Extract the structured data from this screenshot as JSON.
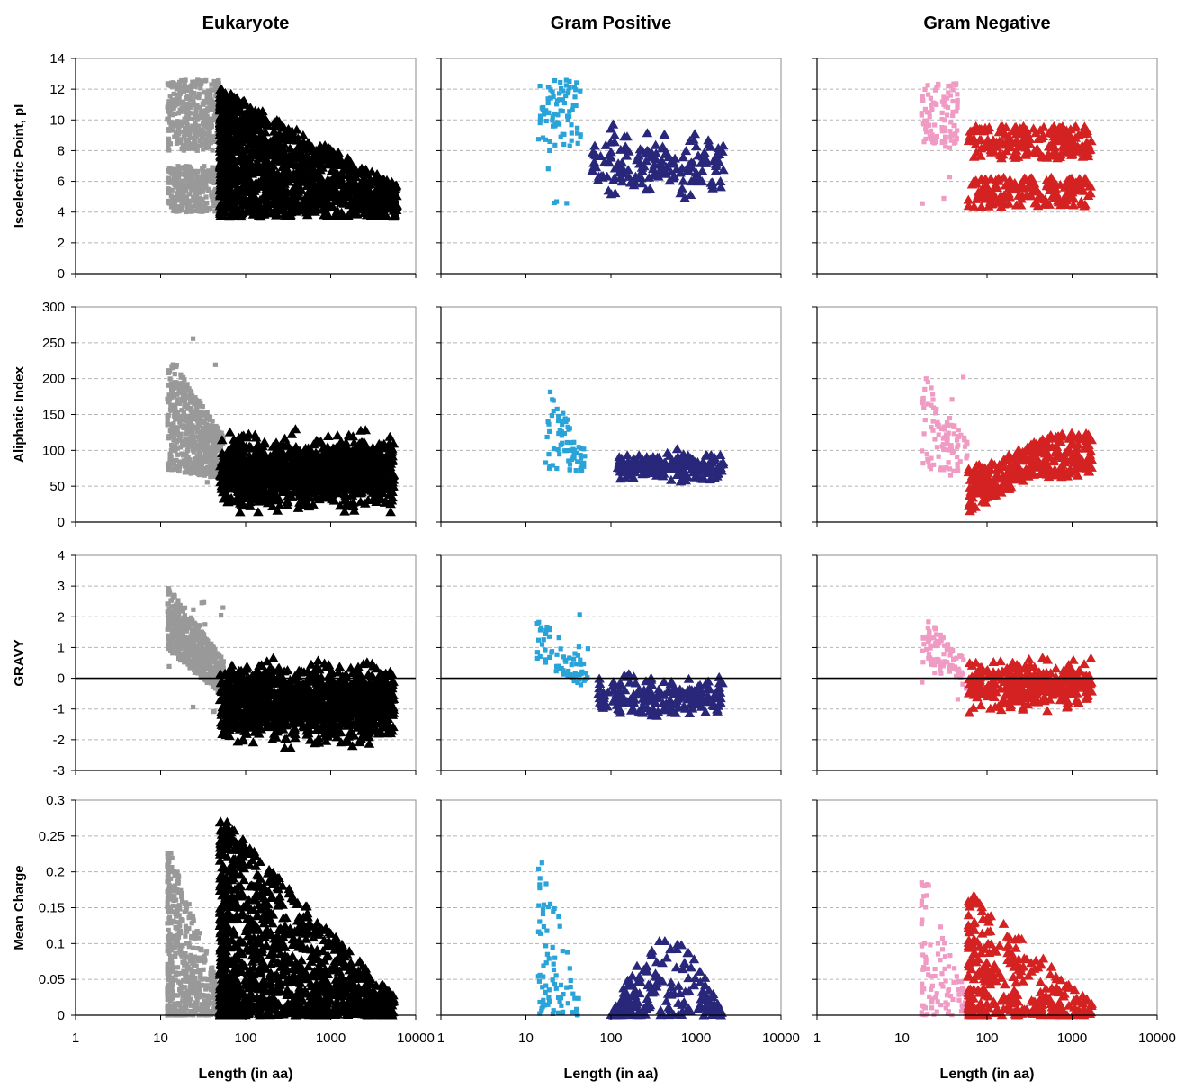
{
  "figure": {
    "columns": [
      "Eukaryote",
      "Gram Positive",
      "Gram Negative"
    ],
    "xlabel": "Length (in aa)"
  },
  "colors": {
    "eukaryote": {
      "short": "#999999",
      "long": "#000000"
    },
    "gram_positive": {
      "short": "#29a3d8",
      "long": "#29277a"
    },
    "gram_negative": {
      "short": "#ef9bc4",
      "long": "#d42222"
    },
    "grid": "#b5b5b5"
  },
  "chart_data": {
    "type": "scatter",
    "xscale": "log",
    "xlim": [
      1,
      10000
    ],
    "xticks": [
      "1",
      "10",
      "100",
      "1000",
      "10000"
    ],
    "columns": [
      "Eukaryote",
      "Gram Positive",
      "Gram Negative"
    ],
    "grid": "horizontal dashed",
    "rows": [
      {
        "ylabel": "Isoelectric Point, pI",
        "ylim": [
          0,
          14
        ],
        "yticks": [
          "0",
          "2",
          "4",
          "6",
          "8",
          "10",
          "12",
          "14"
        ],
        "zero_line": false,
        "clusters": [
          [
            {
              "group": "short",
              "marker": "square",
              "n": 700,
              "x": [
                12,
                50
              ],
              "y": [
                3.5,
                12.7
              ],
              "shape": "bimodal",
              "modes": [
                [
                  4,
                  7
                ],
                [
                  8,
                  12.6
                ]
              ]
            },
            {
              "group": "long",
              "marker": "triangle",
              "n": 1300,
              "x": [
                50,
                6000
              ],
              "y": [
                3.7,
                12.1
              ],
              "shape": "cone"
            }
          ],
          [
            {
              "group": "short",
              "marker": "square",
              "n": 85,
              "x": [
                14,
                45
              ],
              "y": [
                3.9,
                12.6
              ],
              "shape": "upper"
            },
            {
              "group": "long",
              "marker": "triangle",
              "n": 170,
              "x": [
                60,
                2100
              ],
              "y": [
                4.1,
                10.1
              ],
              "shape": "band"
            }
          ],
          [
            {
              "group": "short",
              "marker": "square",
              "n": 100,
              "x": [
                17,
                45
              ],
              "y": [
                4.5,
                12.4
              ],
              "shape": "upper"
            },
            {
              "group": "long",
              "marker": "triangle",
              "n": 380,
              "x": [
                60,
                1700
              ],
              "y": [
                2.8,
                9.6
              ],
              "shape": "bimodal",
              "modes": [
                [
                  4.3,
                  6.3
                ],
                [
                  7.5,
                  9.6
                ]
              ]
            }
          ]
        ]
      },
      {
        "ylabel": "Aliphatic Index",
        "ylim": [
          0,
          300
        ],
        "yticks": [
          "0",
          "50",
          "100",
          "150",
          "200",
          "250",
          "300"
        ],
        "zero_line": false,
        "clusters": [
          [
            {
              "group": "short",
              "marker": "square",
              "n": 600,
              "x": [
                12,
                55
              ],
              "y": [
                42,
                270
              ],
              "shape": "slope",
              "hi": [
                235,
                120
              ],
              "lo": [
                72,
                60
              ]
            },
            {
              "group": "long",
              "marker": "triangle",
              "n": 1300,
              "x": [
                50,
                5500
              ],
              "y": [
                5,
                135
              ],
              "shape": "band"
            }
          ],
          [
            {
              "group": "short",
              "marker": "square",
              "n": 70,
              "x": [
                17,
                50
              ],
              "y": [
                45,
                195
              ],
              "shape": "slope",
              "hi": [
                195,
                100
              ],
              "lo": [
                75,
                70
              ]
            },
            {
              "group": "long",
              "marker": "triangle",
              "n": 200,
              "x": [
                120,
                2100
              ],
              "y": [
                50,
                105
              ],
              "shape": "band"
            }
          ],
          [
            {
              "group": "short",
              "marker": "square",
              "n": 100,
              "x": [
                17,
                60
              ],
              "y": [
                60,
                210
              ],
              "shape": "slope",
              "hi": [
                210,
                110
              ],
              "lo": [
                75,
                65
              ]
            },
            {
              "group": "long",
              "marker": "triangle",
              "n": 330,
              "x": [
                60,
                1700
              ],
              "y": [
                12,
                125
              ],
              "shape": "rise"
            }
          ]
        ]
      },
      {
        "ylabel": "GRAVY",
        "ylim": [
          -3,
          4
        ],
        "yticks": [
          "-3",
          "-2",
          "-1",
          "0",
          "1",
          "2",
          "3",
          "4"
        ],
        "zero_line": true,
        "clusters": [
          [
            {
              "group": "short",
              "marker": "square",
              "n": 600,
              "x": [
                12,
                55
              ],
              "y": [
                -1.1,
                3
              ],
              "shape": "slope",
              "hi": [
                3,
                0.6
              ],
              "lo": [
                0.9,
                -0.6
              ]
            },
            {
              "group": "long",
              "marker": "triangle",
              "n": 1300,
              "x": [
                50,
                5500
              ],
              "y": [
                -2.4,
                0.8
              ],
              "shape": "band"
            }
          ],
          [
            {
              "group": "short",
              "marker": "square",
              "n": 70,
              "x": [
                13,
                55
              ],
              "y": [
                -0.7,
                2.1
              ],
              "shape": "slope",
              "hi": [
                2.1,
                0.4
              ],
              "lo": [
                0.6,
                -0.4
              ]
            },
            {
              "group": "long",
              "marker": "triangle",
              "n": 200,
              "x": [
                70,
                2100
              ],
              "y": [
                -1.5,
                0.3
              ],
              "shape": "band"
            }
          ],
          [
            {
              "group": "short",
              "marker": "square",
              "n": 100,
              "x": [
                17,
                60
              ],
              "y": [
                -0.7,
                2.1
              ],
              "shape": "slope",
              "hi": [
                2.1,
                0.5
              ],
              "lo": [
                0.5,
                -0.4
              ]
            },
            {
              "group": "long",
              "marker": "triangle",
              "n": 330,
              "x": [
                60,
                1700
              ],
              "y": [
                -1.2,
                0.9
              ],
              "shape": "band"
            }
          ]
        ]
      },
      {
        "ylabel": "Mean Charge",
        "ylim": [
          0,
          0.3
        ],
        "yticks": [
          "0",
          "0.05",
          "0.1",
          "0.15",
          "0.2",
          "0.25",
          "0.3"
        ],
        "zero_line": false,
        "clusters": [
          [
            {
              "group": "short",
              "marker": "square",
              "n": 600,
              "x": [
                12,
                55
              ],
              "y": [
                0,
                0.24
              ],
              "shape": "decay"
            },
            {
              "group": "long",
              "marker": "triangle",
              "n": 1300,
              "x": [
                50,
                5500
              ],
              "y": [
                0,
                0.28
              ],
              "shape": "decay"
            }
          ],
          [
            {
              "group": "short",
              "marker": "square",
              "n": 80,
              "x": [
                14,
                45
              ],
              "y": [
                0,
                0.24
              ],
              "shape": "decay"
            },
            {
              "group": "long",
              "marker": "triangle",
              "n": 200,
              "x": [
                100,
                2100
              ],
              "y": [
                0,
                0.11
              ],
              "shape": "hump"
            }
          ],
          [
            {
              "group": "short",
              "marker": "square",
              "n": 100,
              "x": [
                17,
                60
              ],
              "y": [
                0,
                0.21
              ],
              "shape": "decay"
            },
            {
              "group": "long",
              "marker": "triangle",
              "n": 330,
              "x": [
                60,
                1700
              ],
              "y": [
                0,
                0.175
              ],
              "shape": "decay"
            }
          ]
        ]
      }
    ]
  }
}
